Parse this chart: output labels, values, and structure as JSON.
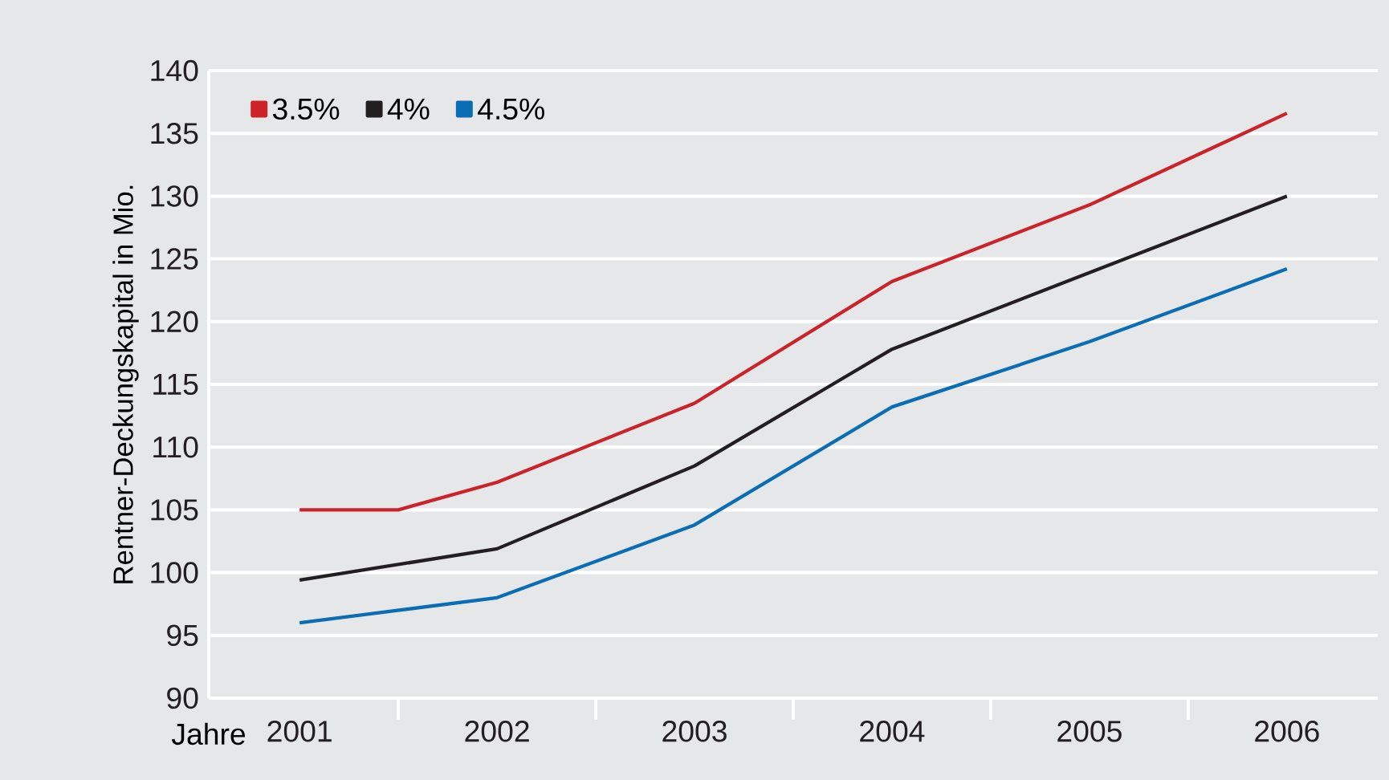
{
  "chart_data": {
    "type": "line",
    "ylabel": "Rentner-Deckungskapital in Mio.",
    "xlabel": "Jahre",
    "xlim": [
      2000.54,
      2006.46
    ],
    "xticks": [
      2001,
      {
        "value": 2001.5,
        "label": null
      },
      2002,
      {
        "value": 2002.5,
        "label": null
      },
      2003,
      {
        "value": 2003.5,
        "label": null
      },
      2004,
      {
        "value": 2004.5,
        "label": null
      },
      2005,
      {
        "value": 2005.5,
        "label": null
      },
      2006
    ],
    "ylim": [
      90,
      140
    ],
    "yticks": [
      90,
      95,
      100,
      105,
      110,
      115,
      120,
      125,
      130,
      135,
      140
    ],
    "grid": "y",
    "legend": "top left",
    "marker": "none",
    "line_style": "solid",
    "series": [
      {
        "name": "3.5%",
        "color": "#cc2229",
        "x": [
          2001,
          2001.5,
          2002,
          2003,
          2004,
          2005,
          2006
        ],
        "values": [
          105.0,
          105.0,
          107.2,
          113.5,
          123.2,
          129.3,
          136.6
        ]
      },
      {
        "name": "4%",
        "color": "#231f20",
        "x": [
          2001,
          2002,
          2003,
          2004,
          2005,
          2006
        ],
        "values": [
          99.4,
          101.9,
          108.5,
          117.8,
          123.9,
          130.0
        ]
      },
      {
        "name": "4.5%",
        "color": "#0a6eb4",
        "x": [
          2001,
          2002,
          2003,
          2004,
          2005,
          2006
        ],
        "values": [
          96.0,
          98.0,
          103.8,
          113.2,
          118.4,
          124.2
        ]
      }
    ]
  }
}
